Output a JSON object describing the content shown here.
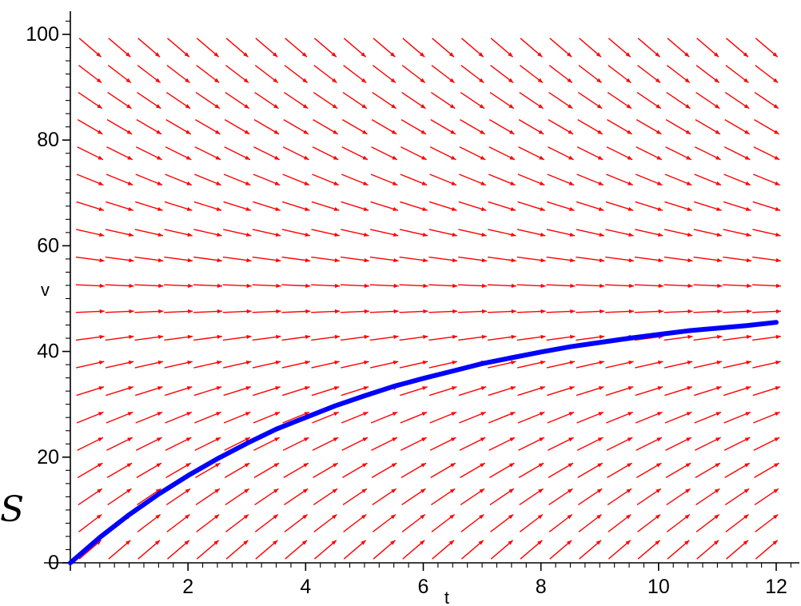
{
  "chart_data": {
    "type": "slope_field",
    "title": "",
    "xlabel": "t",
    "ylabel": "v",
    "xlim": [
      0,
      12
    ],
    "ylim": [
      0,
      100
    ],
    "xticks": [
      0,
      2,
      4,
      6,
      8,
      10,
      12
    ],
    "yticks": [
      0,
      20,
      40,
      60,
      80,
      100
    ],
    "xtick_labels": [
      "0",
      "2",
      "4",
      "6",
      "8",
      "10",
      "12"
    ],
    "ytick_labels": [
      "0",
      "20",
      "40",
      "60",
      "80",
      "100"
    ],
    "field": {
      "equation": "dv/dt = k*(50 - v)",
      "k": 0.2,
      "equilibrium": 50,
      "t_values": [
        0.5,
        1.0,
        1.5,
        2.0,
        2.5,
        3.0,
        3.5,
        4.0,
        4.5,
        5.0,
        5.5,
        6.0,
        6.5,
        7.0,
        7.5,
        8.0,
        8.5,
        9.0,
        9.5,
        10.0,
        10.5,
        11.0,
        11.5,
        12.0
      ],
      "v_values": [
        2.5,
        7.5,
        12.5,
        17.5,
        22.5,
        27.5,
        32.5,
        37.5,
        42.5,
        47.5,
        52.5,
        57.5,
        62.5,
        67.5,
        72.5,
        77.5,
        82.5,
        87.5,
        92.5,
        97.5
      ],
      "color": "#ff0000"
    },
    "series": [
      {
        "x": [
          0,
          0.5,
          1,
          1.5,
          2,
          2.5,
          3,
          3.5,
          4,
          4.5,
          5,
          5.5,
          6,
          6.5,
          7,
          7.5,
          8,
          8.5,
          9,
          9.5,
          10,
          10.5,
          11,
          11.5,
          12
        ],
        "y": [
          0.0,
          4.8,
          9.1,
          13.0,
          16.5,
          19.7,
          22.6,
          25.3,
          27.5,
          29.7,
          31.6,
          33.4,
          34.9,
          36.3,
          37.7,
          38.8,
          39.9,
          40.9,
          41.7,
          42.5,
          43.2,
          43.9,
          44.4,
          44.9,
          45.5
        ],
        "color": "#0000ff"
      }
    ],
    "grid": false,
    "side_text": "S"
  }
}
